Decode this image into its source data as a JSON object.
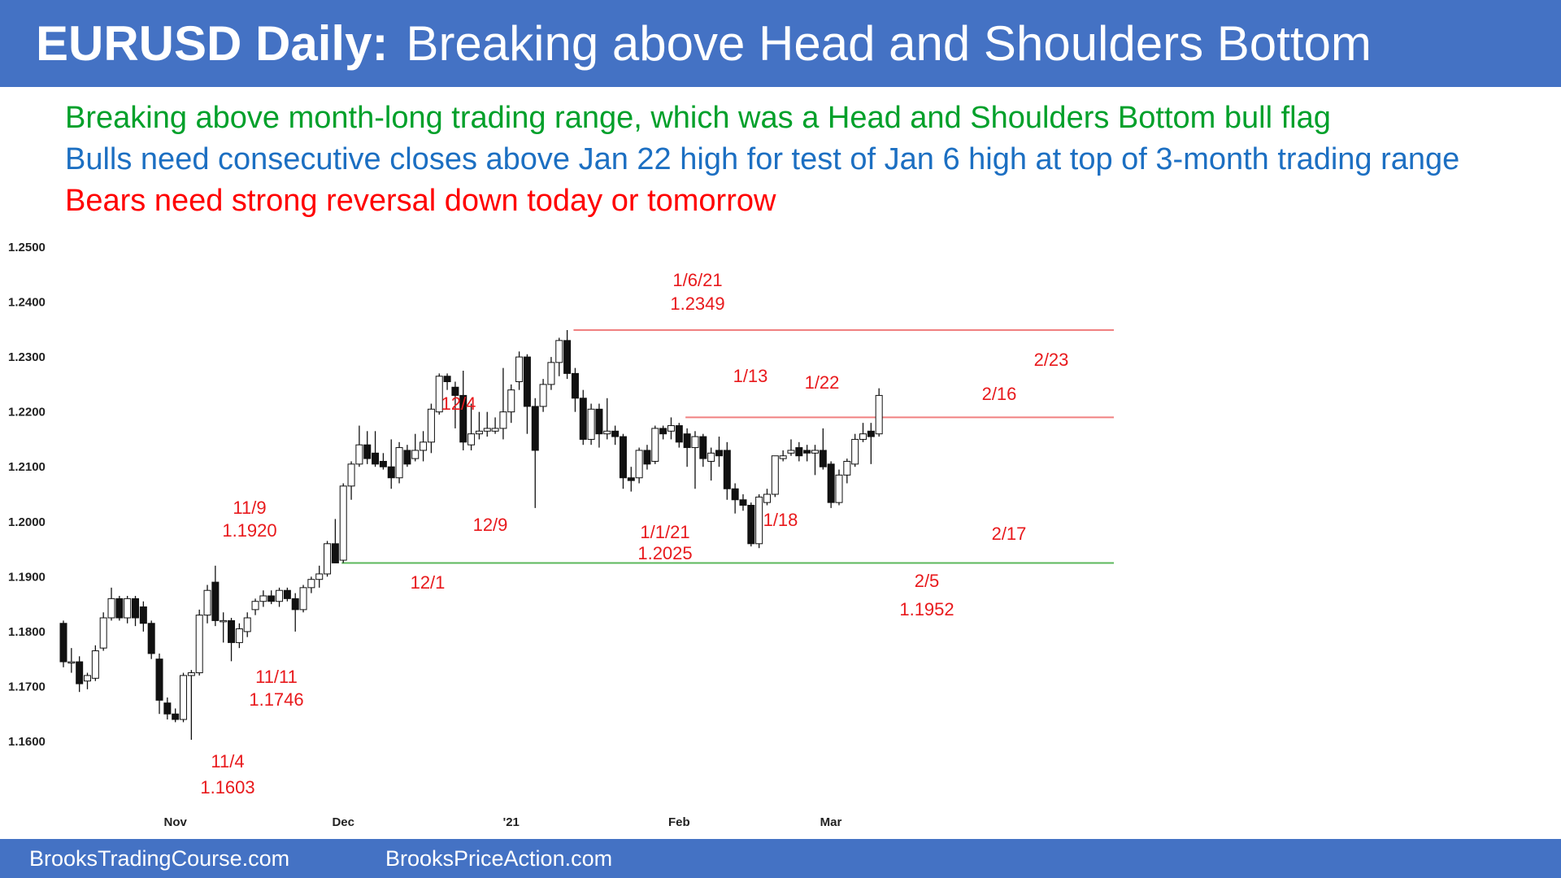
{
  "header": {
    "title_bold": "EURUSD Daily:",
    "title_rest": "Breaking above Head and Shoulders Bottom"
  },
  "subtitles": {
    "line1": "Breaking above month-long trading range, which was a Head and Shoulders Bottom bull flag",
    "line2": "Bulls need consecutive closes above Jan 22 high for test of Jan 6 high at top of 3-month trading range",
    "line3": "Bears need strong reversal down today or tomorrow"
  },
  "footer": {
    "left": "BrooksTradingCourse.com",
    "right": "BrooksPriceAction.com"
  },
  "colors": {
    "header_bg": "#4472c4",
    "line1": "#00a02a",
    "line2": "#1c6fc2",
    "line3": "#ff0000",
    "annotation": "#e8191c",
    "resistance": "#f08080",
    "support": "#5cb85c"
  },
  "chart_data": {
    "type": "candlestick",
    "symbol": "EURUSD",
    "timeframe": "Daily",
    "ylim": [
      1.155,
      1.25
    ],
    "yticks": [
      "1.2500",
      "1.2400",
      "1.2300",
      "1.2200",
      "1.2100",
      "1.2000",
      "1.1900",
      "1.1800",
      "1.1700",
      "1.1600"
    ],
    "xticks": [
      "Nov",
      "Dec",
      "'21",
      "Feb",
      "Mar"
    ],
    "candles": [
      {
        "o": 1.1815,
        "h": 1.182,
        "l": 1.1735,
        "c": 1.1745
      },
      {
        "o": 1.1745,
        "h": 1.177,
        "l": 1.1725,
        "c": 1.1745
      },
      {
        "o": 1.1745,
        "h": 1.1755,
        "l": 1.169,
        "c": 1.1705
      },
      {
        "o": 1.171,
        "h": 1.1725,
        "l": 1.1695,
        "c": 1.172
      },
      {
        "o": 1.1715,
        "h": 1.1775,
        "l": 1.171,
        "c": 1.1765
      },
      {
        "o": 1.177,
        "h": 1.1835,
        "l": 1.1765,
        "c": 1.1825
      },
      {
        "o": 1.1825,
        "h": 1.188,
        "l": 1.182,
        "c": 1.186
      },
      {
        "o": 1.186,
        "h": 1.1865,
        "l": 1.182,
        "c": 1.1825
      },
      {
        "o": 1.1825,
        "h": 1.1865,
        "l": 1.1815,
        "c": 1.186
      },
      {
        "o": 1.186,
        "h": 1.1865,
        "l": 1.181,
        "c": 1.1825
      },
      {
        "o": 1.1845,
        "h": 1.1855,
        "l": 1.18,
        "c": 1.1815
      },
      {
        "o": 1.1815,
        "h": 1.182,
        "l": 1.175,
        "c": 1.176
      },
      {
        "o": 1.175,
        "h": 1.176,
        "l": 1.165,
        "c": 1.1675
      },
      {
        "o": 1.167,
        "h": 1.168,
        "l": 1.164,
        "c": 1.165
      },
      {
        "o": 1.165,
        "h": 1.166,
        "l": 1.1635,
        "c": 1.164
      },
      {
        "o": 1.164,
        "h": 1.1725,
        "l": 1.1635,
        "c": 1.172
      },
      {
        "o": 1.172,
        "h": 1.173,
        "l": 1.1603,
        "c": 1.1725
      },
      {
        "o": 1.1725,
        "h": 1.184,
        "l": 1.172,
        "c": 1.183
      },
      {
        "o": 1.183,
        "h": 1.1885,
        "l": 1.1815,
        "c": 1.1875
      },
      {
        "o": 1.189,
        "h": 1.192,
        "l": 1.181,
        "c": 1.182
      },
      {
        "o": 1.182,
        "h": 1.1835,
        "l": 1.178,
        "c": 1.182
      },
      {
        "o": 1.182,
        "h": 1.1825,
        "l": 1.1746,
        "c": 1.178
      },
      {
        "o": 1.178,
        "h": 1.1815,
        "l": 1.177,
        "c": 1.1805
      },
      {
        "o": 1.18,
        "h": 1.1835,
        "l": 1.179,
        "c": 1.1825
      },
      {
        "o": 1.184,
        "h": 1.186,
        "l": 1.183,
        "c": 1.1855
      },
      {
        "o": 1.1855,
        "h": 1.1875,
        "l": 1.1845,
        "c": 1.1865
      },
      {
        "o": 1.1865,
        "h": 1.1875,
        "l": 1.185,
        "c": 1.1855
      },
      {
        "o": 1.1855,
        "h": 1.188,
        "l": 1.1845,
        "c": 1.1875
      },
      {
        "o": 1.1875,
        "h": 1.188,
        "l": 1.1855,
        "c": 1.186
      },
      {
        "o": 1.186,
        "h": 1.187,
        "l": 1.18,
        "c": 1.184
      },
      {
        "o": 1.184,
        "h": 1.1885,
        "l": 1.1835,
        "c": 1.188
      },
      {
        "o": 1.188,
        "h": 1.19,
        "l": 1.187,
        "c": 1.1895
      },
      {
        "o": 1.1895,
        "h": 1.192,
        "l": 1.188,
        "c": 1.1905
      },
      {
        "o": 1.1905,
        "h": 1.1965,
        "l": 1.19,
        "c": 1.196
      },
      {
        "o": 1.196,
        "h": 1.2005,
        "l": 1.193,
        "c": 1.1925
      },
      {
        "o": 1.193,
        "h": 1.207,
        "l": 1.1925,
        "c": 1.2065
      },
      {
        "o": 1.2065,
        "h": 1.211,
        "l": 1.204,
        "c": 1.2105
      },
      {
        "o": 1.2105,
        "h": 1.2175,
        "l": 1.21,
        "c": 1.214
      },
      {
        "o": 1.214,
        "h": 1.2165,
        "l": 1.2105,
        "c": 1.2115
      },
      {
        "o": 1.2125,
        "h": 1.2165,
        "l": 1.21,
        "c": 1.2105
      },
      {
        "o": 1.211,
        "h": 1.2125,
        "l": 1.2095,
        "c": 1.21
      },
      {
        "o": 1.21,
        "h": 1.215,
        "l": 1.206,
        "c": 1.208
      },
      {
        "o": 1.208,
        "h": 1.2145,
        "l": 1.207,
        "c": 1.2135
      },
      {
        "o": 1.213,
        "h": 1.214,
        "l": 1.21,
        "c": 1.2105
      },
      {
        "o": 1.2115,
        "h": 1.216,
        "l": 1.211,
        "c": 1.213
      },
      {
        "o": 1.213,
        "h": 1.2165,
        "l": 1.211,
        "c": 1.2145
      },
      {
        "o": 1.2145,
        "h": 1.2215,
        "l": 1.2125,
        "c": 1.2205
      },
      {
        "o": 1.22,
        "h": 1.227,
        "l": 1.2195,
        "c": 1.2265
      },
      {
        "o": 1.2265,
        "h": 1.227,
        "l": 1.224,
        "c": 1.2255
      },
      {
        "o": 1.2245,
        "h": 1.2255,
        "l": 1.217,
        "c": 1.223
      },
      {
        "o": 1.223,
        "h": 1.2275,
        "l": 1.213,
        "c": 1.2145
      },
      {
        "o": 1.214,
        "h": 1.2215,
        "l": 1.213,
        "c": 1.216
      },
      {
        "o": 1.216,
        "h": 1.22,
        "l": 1.215,
        "c": 1.2165
      },
      {
        "o": 1.2165,
        "h": 1.22,
        "l": 1.2155,
        "c": 1.217
      },
      {
        "o": 1.2165,
        "h": 1.219,
        "l": 1.216,
        "c": 1.217
      },
      {
        "o": 1.217,
        "h": 1.228,
        "l": 1.215,
        "c": 1.22
      },
      {
        "o": 1.22,
        "h": 1.225,
        "l": 1.218,
        "c": 1.224
      },
      {
        "o": 1.2255,
        "h": 1.231,
        "l": 1.224,
        "c": 1.23
      },
      {
        "o": 1.23,
        "h": 1.2305,
        "l": 1.216,
        "c": 1.221
      },
      {
        "o": 1.221,
        "h": 1.2225,
        "l": 1.2025,
        "c": 1.213
      },
      {
        "o": 1.221,
        "h": 1.226,
        "l": 1.22,
        "c": 1.225
      },
      {
        "o": 1.225,
        "h": 1.23,
        "l": 1.224,
        "c": 1.229
      },
      {
        "o": 1.229,
        "h": 1.2335,
        "l": 1.2265,
        "c": 1.233
      },
      {
        "o": 1.233,
        "h": 1.2349,
        "l": 1.226,
        "c": 1.227
      },
      {
        "o": 1.227,
        "h": 1.228,
        "l": 1.22,
        "c": 1.2225
      },
      {
        "o": 1.2225,
        "h": 1.224,
        "l": 1.214,
        "c": 1.215
      },
      {
        "o": 1.215,
        "h": 1.2215,
        "l": 1.214,
        "c": 1.2205
      },
      {
        "o": 1.2205,
        "h": 1.2215,
        "l": 1.2135,
        "c": 1.216
      },
      {
        "o": 1.216,
        "h": 1.2225,
        "l": 1.215,
        "c": 1.2165
      },
      {
        "o": 1.2165,
        "h": 1.2175,
        "l": 1.214,
        "c": 1.2155
      },
      {
        "o": 1.2155,
        "h": 1.216,
        "l": 1.206,
        "c": 1.208
      },
      {
        "o": 1.208,
        "h": 1.21,
        "l": 1.2055,
        "c": 1.2075
      },
      {
        "o": 1.208,
        "h": 1.2135,
        "l": 1.207,
        "c": 1.213
      },
      {
        "o": 1.213,
        "h": 1.214,
        "l": 1.2095,
        "c": 1.2105
      },
      {
        "o": 1.211,
        "h": 1.2175,
        "l": 1.2105,
        "c": 1.217
      },
      {
        "o": 1.217,
        "h": 1.2175,
        "l": 1.215,
        "c": 1.216
      },
      {
        "o": 1.2165,
        "h": 1.219,
        "l": 1.215,
        "c": 1.2175
      },
      {
        "o": 1.2175,
        "h": 1.218,
        "l": 1.2135,
        "c": 1.2145
      },
      {
        "o": 1.216,
        "h": 1.217,
        "l": 1.21,
        "c": 1.2135
      },
      {
        "o": 1.2135,
        "h": 1.2165,
        "l": 1.206,
        "c": 1.2155
      },
      {
        "o": 1.2155,
        "h": 1.216,
        "l": 1.21,
        "c": 1.2115
      },
      {
        "o": 1.211,
        "h": 1.2135,
        "l": 1.2075,
        "c": 1.2125
      },
      {
        "o": 1.213,
        "h": 1.2155,
        "l": 1.21,
        "c": 1.212
      },
      {
        "o": 1.213,
        "h": 1.2145,
        "l": 1.204,
        "c": 1.206
      },
      {
        "o": 1.206,
        "h": 1.207,
        "l": 1.2015,
        "c": 1.204
      },
      {
        "o": 1.204,
        "h": 1.205,
        "l": 1.202,
        "c": 1.203
      },
      {
        "o": 1.203,
        "h": 1.2035,
        "l": 1.1955,
        "c": 1.196
      },
      {
        "o": 1.196,
        "h": 1.205,
        "l": 1.1952,
        "c": 1.2045
      },
      {
        "o": 1.2035,
        "h": 1.206,
        "l": 1.203,
        "c": 1.205
      },
      {
        "o": 1.205,
        "h": 1.212,
        "l": 1.2045,
        "c": 1.212
      },
      {
        "o": 1.2115,
        "h": 1.213,
        "l": 1.211,
        "c": 1.212
      },
      {
        "o": 1.2125,
        "h": 1.215,
        "l": 1.212,
        "c": 1.213
      },
      {
        "o": 1.2135,
        "h": 1.2145,
        "l": 1.211,
        "c": 1.212
      },
      {
        "o": 1.213,
        "h": 1.214,
        "l": 1.211,
        "c": 1.2125
      },
      {
        "o": 1.2125,
        "h": 1.214,
        "l": 1.2085,
        "c": 1.213
      },
      {
        "o": 1.213,
        "h": 1.217,
        "l": 1.2095,
        "c": 1.21
      },
      {
        "o": 1.2105,
        "h": 1.211,
        "l": 1.2025,
        "c": 1.2035
      },
      {
        "o": 1.2035,
        "h": 1.2095,
        "l": 1.203,
        "c": 1.2085
      },
      {
        "o": 1.2085,
        "h": 1.2115,
        "l": 1.207,
        "c": 1.211
      },
      {
        "o": 1.2105,
        "h": 1.216,
        "l": 1.21,
        "c": 1.215
      },
      {
        "o": 1.215,
        "h": 1.218,
        "l": 1.2145,
        "c": 1.216
      },
      {
        "o": 1.2165,
        "h": 1.218,
        "l": 1.2105,
        "c": 1.2155
      },
      {
        "o": 1.216,
        "h": 1.2243,
        "l": 1.2155,
        "c": 1.223
      }
    ],
    "levels": [
      {
        "name": "1/6/21 high",
        "value": 1.2349
      },
      {
        "name": "1/22 high",
        "value": 1.219
      },
      {
        "name": "12/1 low",
        "value": 1.1925
      }
    ],
    "annotations": [
      {
        "label": "11/9",
        "value": "1.1920"
      },
      {
        "label": "11/11",
        "value": "1.1746"
      },
      {
        "label": "11/4",
        "value": "1.1603"
      },
      {
        "label": "12/4",
        "value": ""
      },
      {
        "label": "12/9",
        "value": ""
      },
      {
        "label": "12/1",
        "value": ""
      },
      {
        "label": "1/6/21",
        "value": "1.2349"
      },
      {
        "label": "1/1/21",
        "value": "1.2025"
      },
      {
        "label": "1/13",
        "value": ""
      },
      {
        "label": "1/22",
        "value": ""
      },
      {
        "label": "1/18",
        "value": ""
      },
      {
        "label": "2/16",
        "value": ""
      },
      {
        "label": "2/23",
        "value": ""
      },
      {
        "label": "2/17",
        "value": ""
      },
      {
        "label": "2/5",
        "value": "1.1952"
      }
    ]
  }
}
